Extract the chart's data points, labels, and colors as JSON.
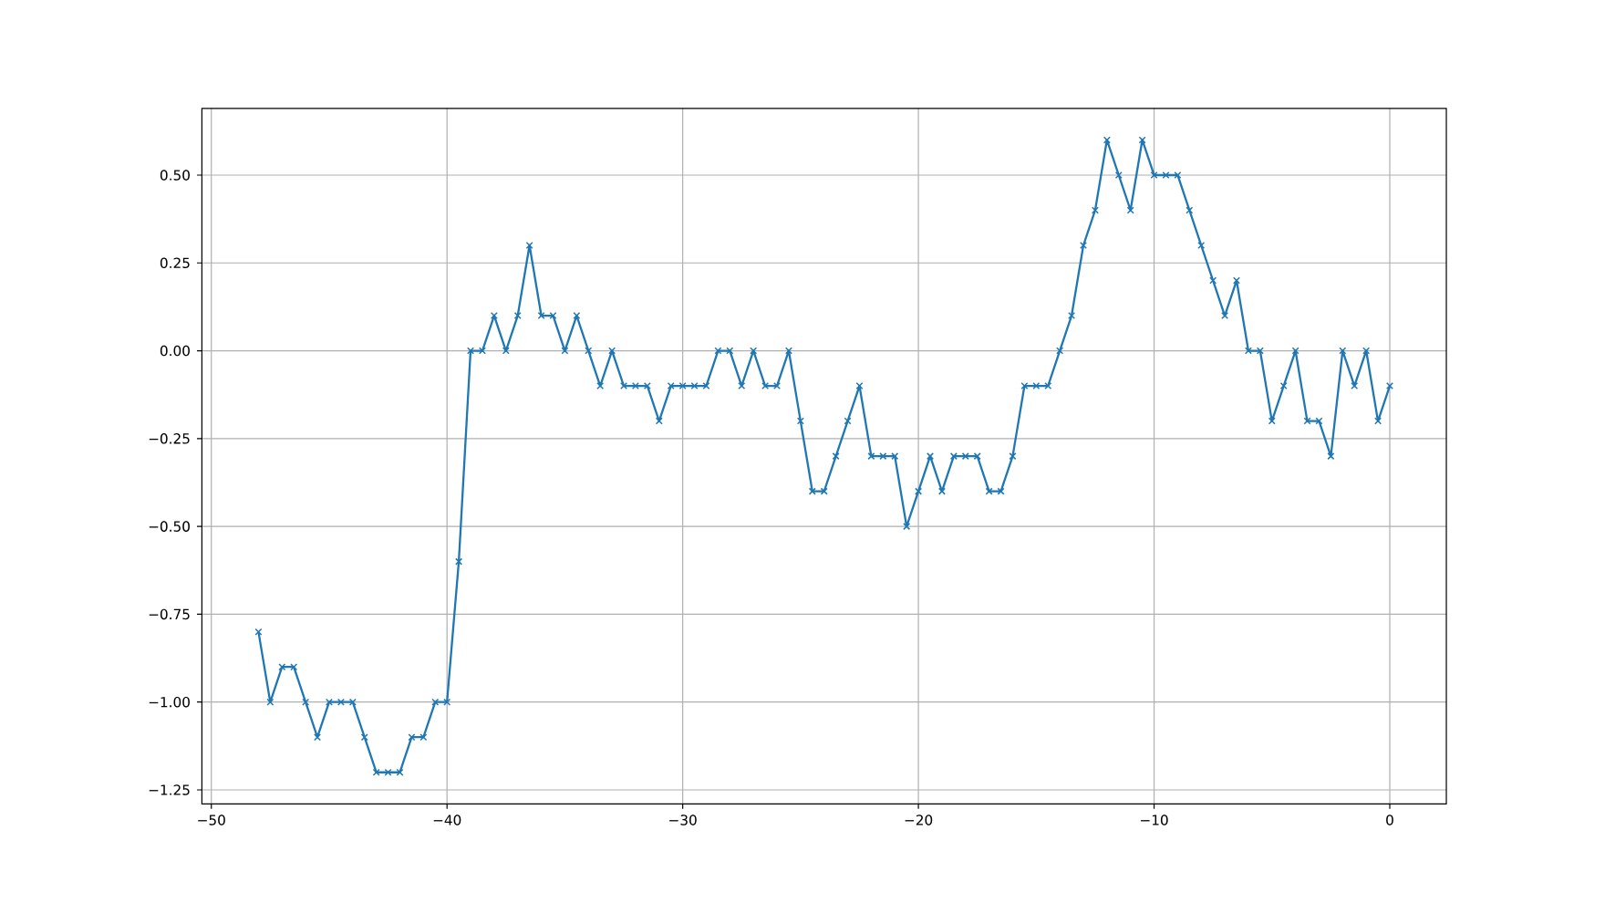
{
  "chart_data": {
    "type": "line",
    "x": [
      -48,
      -47.5,
      -47,
      -46.5,
      -46,
      -45.5,
      -45,
      -44.5,
      -44,
      -43.5,
      -43,
      -42.5,
      -42,
      -41.5,
      -41,
      -40.5,
      -40,
      -39.5,
      -39,
      -38.5,
      -38,
      -37.5,
      -37,
      -36.5,
      -36,
      -35.5,
      -35,
      -34.5,
      -34,
      -33.5,
      -33,
      -32.5,
      -32,
      -31.5,
      -31,
      -30.5,
      -30,
      -29.5,
      -29,
      -28.5,
      -28,
      -27.5,
      -27,
      -26.5,
      -26,
      -25.5,
      -25,
      -24.5,
      -24,
      -23.5,
      -23,
      -22.5,
      -22,
      -21.5,
      -21,
      -20.5,
      -20,
      -19.5,
      -19,
      -18.5,
      -18,
      -17.5,
      -17,
      -16.5,
      -16,
      -15.5,
      -15,
      -14.5,
      -14,
      -13.5,
      -13,
      -12.5,
      -12,
      -11.5,
      -11,
      -10.5,
      -10,
      -9.5,
      -9,
      -8.5,
      -8,
      -7.5,
      -7,
      -6.5,
      -6,
      -5.5,
      -5,
      -4.5,
      -4,
      -3.5,
      -3,
      -2.5,
      -2,
      -1.5,
      -1,
      -0.5,
      0
    ],
    "values": [
      -0.8,
      -1.0,
      -0.9,
      -0.9,
      -1.0,
      -1.1,
      -1.0,
      -1.0,
      -1.0,
      -1.1,
      -1.2,
      -1.2,
      -1.2,
      -1.1,
      -1.1,
      -1.0,
      -1.0,
      -0.6,
      0.0,
      0.0,
      0.1,
      0.0,
      0.1,
      0.3,
      0.1,
      0.1,
      0.0,
      0.1,
      0.0,
      -0.1,
      0.0,
      -0.1,
      -0.1,
      -0.1,
      -0.2,
      -0.1,
      -0.1,
      -0.1,
      -0.1,
      0.0,
      0.0,
      -0.1,
      0.0,
      -0.1,
      -0.1,
      0.0,
      -0.2,
      -0.4,
      -0.4,
      -0.3,
      -0.2,
      -0.1,
      -0.3,
      -0.3,
      -0.3,
      -0.5,
      -0.4,
      -0.3,
      -0.4,
      -0.3,
      -0.3,
      -0.3,
      -0.4,
      -0.4,
      -0.3,
      -0.1,
      -0.1,
      -0.1,
      0.0,
      0.1,
      0.3,
      0.4,
      0.6,
      0.5,
      0.4,
      0.6,
      0.5,
      0.5,
      0.5,
      0.4,
      0.3,
      0.2,
      0.1,
      0.2,
      0.0,
      0.0,
      -0.2,
      -0.1,
      0.0,
      -0.2,
      -0.2,
      -0.3,
      0.0,
      -0.1,
      0.0,
      -0.2,
      -0.1
    ],
    "color": "#1f77b4",
    "xlim": [
      -50.4,
      2.4
    ],
    "ylim": [
      -1.29,
      0.69
    ],
    "xticks": [
      {
        "value": -50,
        "label": "−50"
      },
      {
        "value": -40,
        "label": "−40"
      },
      {
        "value": -30,
        "label": "−30"
      },
      {
        "value": -20,
        "label": "−20"
      },
      {
        "value": -10,
        "label": "−10"
      },
      0
    ],
    "yticks": [
      {
        "value": -1.25,
        "label": "−1.25"
      },
      {
        "value": -1.0,
        "label": "−1.00"
      },
      {
        "value": -0.75,
        "label": "−0.75"
      },
      {
        "value": -0.5,
        "label": "−0.50"
      },
      {
        "value": -0.25,
        "label": "−0.25"
      },
      {
        "value": 0,
        "label": "0.00"
      },
      {
        "value": 0.25,
        "label": "0.25"
      },
      {
        "value": 0.5,
        "label": "0.50"
      }
    ],
    "grid": true,
    "marker": "cross",
    "line_style": "solid"
  }
}
